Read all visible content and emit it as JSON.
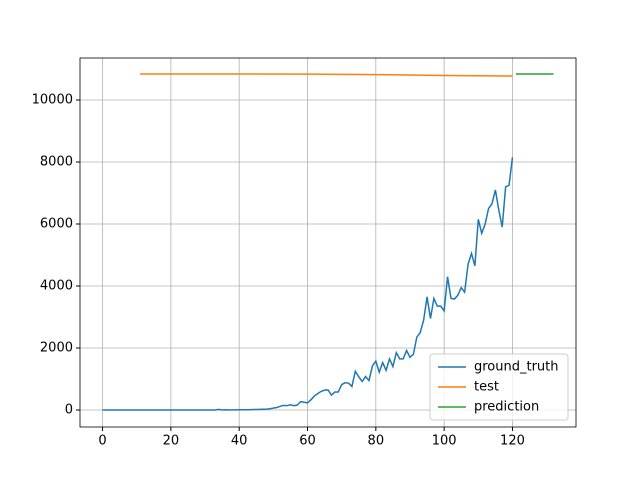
{
  "chart_data": {
    "type": "line",
    "xlim": [
      -6.6,
      138.6
    ],
    "ylim": [
      -548,
      11355
    ],
    "xticks": [
      0,
      20,
      40,
      60,
      80,
      100,
      120
    ],
    "yticks": [
      0,
      2000,
      4000,
      6000,
      8000,
      10000
    ],
    "grid": true,
    "legend": "lower right",
    "series": [
      {
        "name": "ground_truth",
        "color": "#1f77b4",
        "x": [
          0,
          1,
          2,
          3,
          4,
          5,
          6,
          7,
          8,
          9,
          10,
          11,
          12,
          13,
          14,
          15,
          16,
          17,
          18,
          19,
          20,
          21,
          22,
          23,
          24,
          25,
          26,
          27,
          28,
          29,
          30,
          31,
          32,
          33,
          34,
          35,
          36,
          37,
          38,
          39,
          40,
          41,
          42,
          43,
          44,
          45,
          46,
          47,
          48,
          49,
          50,
          51,
          52,
          53,
          54,
          55,
          56,
          57,
          58,
          59,
          60,
          61,
          62,
          63,
          64,
          65,
          66,
          67,
          68,
          69,
          70,
          71,
          72,
          73,
          74,
          75,
          76,
          77,
          78,
          79,
          80,
          81,
          82,
          83,
          84,
          85,
          86,
          87,
          88,
          89,
          90,
          91,
          92,
          93,
          94,
          95,
          96,
          97,
          98,
          99,
          100,
          101,
          102,
          103,
          104,
          105,
          106,
          107,
          108,
          109,
          110,
          111,
          112,
          113,
          114,
          115,
          116,
          117,
          118,
          119,
          120
        ],
        "values": [
          0,
          0,
          0,
          0,
          0,
          0,
          0,
          0,
          0,
          0,
          0,
          0,
          0,
          0,
          0,
          0,
          0,
          0,
          0,
          0,
          0,
          0,
          0,
          0,
          0,
          0,
          0,
          0,
          0,
          0,
          0,
          0,
          0,
          0,
          20,
          0,
          10,
          0,
          5,
          5,
          10,
          10,
          10,
          10,
          15,
          15,
          20,
          25,
          30,
          40,
          60,
          80,
          120,
          150,
          140,
          170,
          140,
          160,
          270,
          250,
          230,
          330,
          450,
          530,
          600,
          640,
          650,
          480,
          580,
          580,
          820,
          880,
          870,
          760,
          1250,
          1070,
          920,
          1080,
          950,
          1420,
          1580,
          1220,
          1530,
          1280,
          1650,
          1400,
          1850,
          1650,
          1650,
          1920,
          1700,
          1800,
          2350,
          2500,
          2900,
          3650,
          2950,
          3600,
          3350,
          3350,
          3200,
          4300,
          3600,
          3580,
          3700,
          3950,
          3800,
          4700,
          5050,
          4650,
          6150,
          5700,
          6000,
          6500,
          6650,
          7100,
          6450,
          5900,
          7200,
          7250,
          8150
        ]
      },
      {
        "name": "test",
        "color": "#ff7f0e",
        "x": [
          11,
          40,
          60,
          80,
          100,
          120
        ],
        "values": [
          10840,
          10840,
          10835,
          10820,
          10790,
          10775
        ]
      },
      {
        "name": "prediction",
        "color": "#2ca02c",
        "x": [
          121,
          132
        ],
        "values": [
          10840,
          10840
        ]
      }
    ]
  }
}
